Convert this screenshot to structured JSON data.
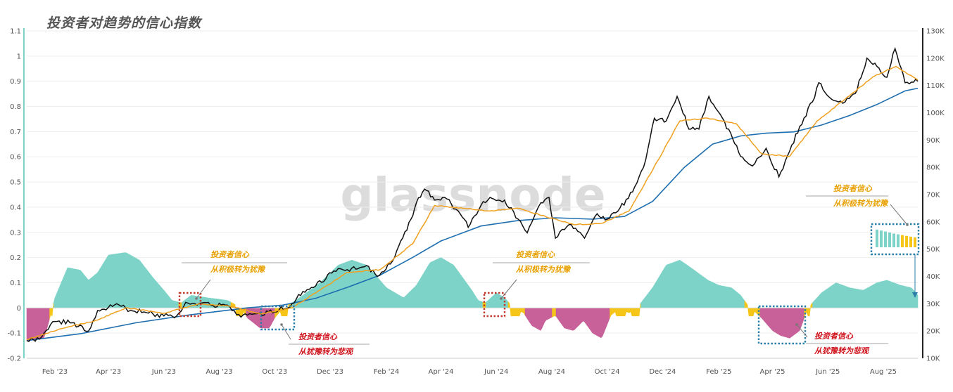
{
  "title": "投资者对趋势的信心指数",
  "watermark": "glassnode",
  "colors": {
    "optimism": "#7dd3c8",
    "neutral": "#f5c518",
    "pessimism": "#c8619a",
    "price": "#111111",
    "short_ma": "#f0a020",
    "long_ma": "#1f6fb0",
    "annot_orange": "#e8a000",
    "annot_red": "#d0121b",
    "box_red": "#c0392b",
    "box_blue": "#2a7ea8"
  },
  "chart_data": {
    "type": "area",
    "x_range": [
      "2023-01-01",
      "2025-09-08"
    ],
    "left_axis": {
      "range": [
        -0.2,
        1.1
      ],
      "ticks": [
        -0.2,
        -0.1,
        0,
        0.1,
        0.2,
        0.3,
        0.4,
        0.5,
        0.6,
        0.7,
        0.8,
        0.9,
        1,
        1.1
      ]
    },
    "right_axis": {
      "range": [
        10000,
        130000
      ],
      "ticks": [
        10000,
        20000,
        30000,
        40000,
        50000,
        60000,
        70000,
        80000,
        90000,
        100000,
        110000,
        120000,
        130000
      ],
      "tick_labels": [
        "10K",
        "20K",
        "30K",
        "40K",
        "50K",
        "60K",
        "70K",
        "80K",
        "90K",
        "100K",
        "110K",
        "120K",
        "130K"
      ]
    },
    "x_ticks": [
      {
        "date": "2023-02-01",
        "label": "Feb '23"
      },
      {
        "date": "2023-04-01",
        "label": "Apr '23"
      },
      {
        "date": "2023-06-01",
        "label": "Jun '23"
      },
      {
        "date": "2023-08-01",
        "label": "Aug '23"
      },
      {
        "date": "2023-10-01",
        "label": "Oct '23"
      },
      {
        "date": "2023-12-01",
        "label": "Dec '23"
      },
      {
        "date": "2024-02-01",
        "label": "Feb '24"
      },
      {
        "date": "2024-04-01",
        "label": "Apr '24"
      },
      {
        "date": "2024-06-01",
        "label": "Jun '24"
      },
      {
        "date": "2024-08-01",
        "label": "Aug '24"
      },
      {
        "date": "2024-10-01",
        "label": "Oct '24"
      },
      {
        "date": "2024-12-01",
        "label": "Dec '24"
      },
      {
        "date": "2025-02-01",
        "label": "Feb '25"
      },
      {
        "date": "2025-04-01",
        "label": "Apr '25"
      },
      {
        "date": "2025-06-01",
        "label": "Jun '25"
      },
      {
        "date": "2025-08-01",
        "label": "Aug '25"
      }
    ],
    "confidence_index": {
      "x": [
        "2023-01-01",
        "2023-01-20",
        "2023-01-25",
        "2023-02-01",
        "2023-02-15",
        "2023-03-01",
        "2023-03-10",
        "2023-03-20",
        "2023-04-01",
        "2023-04-20",
        "2023-05-05",
        "2023-05-20",
        "2023-06-01",
        "2023-06-10",
        "2023-06-20",
        "2023-07-01",
        "2023-07-20",
        "2023-08-10",
        "2023-08-25",
        "2023-09-01",
        "2023-09-15",
        "2023-09-25",
        "2023-10-01",
        "2023-10-10",
        "2023-10-20",
        "2023-11-01",
        "2023-11-20",
        "2023-12-10",
        "2023-12-25",
        "2024-01-10",
        "2024-01-20",
        "2024-02-01",
        "2024-02-20",
        "2024-03-05",
        "2024-03-20",
        "2024-04-01",
        "2024-04-15",
        "2024-04-25",
        "2024-05-05",
        "2024-05-12",
        "2024-05-20",
        "2024-06-01",
        "2024-06-10",
        "2024-06-20",
        "2024-07-01",
        "2024-07-10",
        "2024-07-20",
        "2024-07-25",
        "2024-08-05",
        "2024-08-15",
        "2024-08-25",
        "2024-09-05",
        "2024-09-15",
        "2024-09-25",
        "2024-10-05",
        "2024-10-15",
        "2024-10-25",
        "2024-11-05",
        "2024-11-20",
        "2024-12-05",
        "2024-12-20",
        "2025-01-01",
        "2025-01-20",
        "2025-02-01",
        "2025-02-15",
        "2025-02-25",
        "2025-03-05",
        "2025-03-20",
        "2025-04-01",
        "2025-04-10",
        "2025-04-20",
        "2025-05-01",
        "2025-05-10",
        "2025-05-25",
        "2025-06-10",
        "2025-06-25",
        "2025-07-10",
        "2025-07-25",
        "2025-08-05",
        "2025-08-20",
        "2025-09-01",
        "2025-09-08"
      ],
      "values": [
        -0.13,
        -0.12,
        -0.06,
        0.04,
        0.16,
        0.15,
        0.11,
        0.14,
        0.21,
        0.22,
        0.19,
        0.12,
        0.07,
        0.03,
        0.02,
        0.05,
        0.04,
        0.03,
        0.0,
        -0.04,
        -0.08,
        -0.08,
        -0.04,
        0.0,
        0.02,
        0.05,
        0.1,
        0.17,
        0.19,
        0.17,
        0.13,
        0.08,
        0.04,
        0.09,
        0.18,
        0.2,
        0.17,
        0.12,
        0.07,
        0.03,
        0.02,
        0.06,
        0.04,
        0.0,
        -0.02,
        -0.07,
        -0.09,
        -0.05,
        -0.03,
        -0.08,
        -0.09,
        -0.05,
        -0.1,
        -0.12,
        -0.03,
        0.0,
        -0.02,
        0.01,
        0.08,
        0.17,
        0.19,
        0.16,
        0.11,
        0.09,
        0.08,
        0.05,
        0.01,
        -0.04,
        -0.09,
        -0.11,
        -0.12,
        -0.09,
        0.0,
        0.06,
        0.1,
        0.08,
        0.07,
        0.1,
        0.11,
        0.09,
        0.08,
        0.05
      ]
    },
    "btc_price": {
      "x": [
        "2023-01-01",
        "2023-01-15",
        "2023-02-01",
        "2023-02-20",
        "2023-03-10",
        "2023-03-20",
        "2023-04-10",
        "2023-04-25",
        "2023-05-10",
        "2023-06-01",
        "2023-06-15",
        "2023-06-25",
        "2023-07-10",
        "2023-07-25",
        "2023-08-10",
        "2023-08-20",
        "2023-09-01",
        "2023-09-15",
        "2023-10-01",
        "2023-10-20",
        "2023-11-01",
        "2023-11-15",
        "2023-12-05",
        "2023-12-20",
        "2024-01-10",
        "2024-01-22",
        "2024-02-10",
        "2024-02-28",
        "2024-03-05",
        "2024-03-14",
        "2024-03-25",
        "2024-04-05",
        "2024-04-20",
        "2024-05-01",
        "2024-05-15",
        "2024-05-25",
        "2024-06-10",
        "2024-06-25",
        "2024-07-05",
        "2024-07-20",
        "2024-07-29",
        "2024-08-05",
        "2024-08-20",
        "2024-09-06",
        "2024-09-20",
        "2024-10-01",
        "2024-10-15",
        "2024-10-29",
        "2024-11-10",
        "2024-11-22",
        "2024-12-05",
        "2024-12-17",
        "2024-12-30",
        "2025-01-10",
        "2025-01-21",
        "2025-02-05",
        "2025-02-25",
        "2025-03-10",
        "2025-03-25",
        "2025-04-08",
        "2025-04-20",
        "2025-05-01",
        "2025-05-15",
        "2025-05-22",
        "2025-06-05",
        "2025-06-20",
        "2025-07-01",
        "2025-07-14",
        "2025-07-25",
        "2025-08-05",
        "2025-08-14",
        "2025-08-25",
        "2025-09-08"
      ],
      "values": [
        16500,
        17000,
        23500,
        23000,
        20000,
        27500,
        30000,
        27500,
        27000,
        25500,
        25500,
        30500,
        30200,
        29300,
        29500,
        26000,
        25800,
        26500,
        27000,
        30000,
        34500,
        36500,
        42000,
        42500,
        44000,
        40000,
        47000,
        61000,
        67000,
        72000,
        68000,
        69000,
        64000,
        58000,
        66000,
        69000,
        68000,
        61000,
        56000,
        67000,
        69000,
        54000,
        59000,
        54000,
        63000,
        61000,
        65000,
        71000,
        80000,
        98000,
        97000,
        106000,
        94000,
        94000,
        106000,
        98000,
        84000,
        80500,
        87000,
        76500,
        86000,
        95000,
        104000,
        111000,
        105000,
        104000,
        107000,
        120000,
        117000,
        113000,
        123500,
        111000,
        111500
      ]
    },
    "short_ma": {
      "x": [
        "2023-01-01",
        "2023-02-10",
        "2023-03-20",
        "2023-04-20",
        "2023-06-01",
        "2023-07-10",
        "2023-08-15",
        "2023-09-15",
        "2023-10-20",
        "2023-11-20",
        "2023-12-20",
        "2024-01-25",
        "2024-03-01",
        "2024-03-25",
        "2024-04-25",
        "2024-05-25",
        "2024-06-25",
        "2024-07-25",
        "2024-08-25",
        "2024-09-25",
        "2024-10-25",
        "2024-11-20",
        "2024-12-20",
        "2025-01-20",
        "2025-02-20",
        "2025-03-20",
        "2025-04-20",
        "2025-05-20",
        "2025-06-20",
        "2025-07-20",
        "2025-08-15",
        "2025-09-08"
      ],
      "values": [
        16800,
        21000,
        24000,
        28500,
        26500,
        30000,
        29000,
        26200,
        28500,
        35000,
        41500,
        42500,
        52000,
        66000,
        65000,
        64000,
        65000,
        62000,
        59000,
        59500,
        64000,
        79000,
        97000,
        98000,
        96000,
        85000,
        84000,
        97000,
        105000,
        113000,
        117000,
        112000
      ]
    },
    "long_ma": {
      "x": [
        "2023-01-01",
        "2023-03-01",
        "2023-05-01",
        "2023-07-01",
        "2023-09-01",
        "2023-10-10",
        "2023-11-15",
        "2023-12-20",
        "2024-01-25",
        "2024-03-01",
        "2024-04-01",
        "2024-05-15",
        "2024-06-25",
        "2024-08-05",
        "2024-09-15",
        "2024-10-20",
        "2024-11-20",
        "2024-12-25",
        "2025-01-25",
        "2025-02-25",
        "2025-03-25",
        "2025-04-25",
        "2025-05-25",
        "2025-06-25",
        "2025-07-25",
        "2025-08-25",
        "2025-09-08"
      ],
      "values": [
        16500,
        19000,
        23000,
        26000,
        28500,
        29500,
        32000,
        36000,
        40500,
        47000,
        53000,
        58500,
        60500,
        61500,
        61000,
        62000,
        67500,
        80000,
        88500,
        91500,
        92500,
        93000,
        95500,
        99000,
        103000,
        108000,
        109000
      ]
    }
  },
  "annotations": [
    {
      "line1": "投资者信心",
      "line2": "从积极转为犹豫",
      "color": "orange"
    },
    {
      "line1": "投资者信心",
      "line2": "从犹豫转为悲观",
      "color": "red"
    },
    {
      "line1": "投资者信心",
      "line2": "从积极转为犹豫",
      "color": "orange"
    },
    {
      "line1": "投资者信心",
      "line2": "从犹豫转为悲观",
      "color": "red"
    },
    {
      "line1": "投资者信心",
      "line2": "从积极转为犹豫",
      "color": "orange"
    }
  ],
  "legend_bars": [
    0.9,
    0.85,
    0.8,
    0.75,
    0.7,
    0.66,
    0.62,
    0.58,
    0.54,
    0.5
  ]
}
